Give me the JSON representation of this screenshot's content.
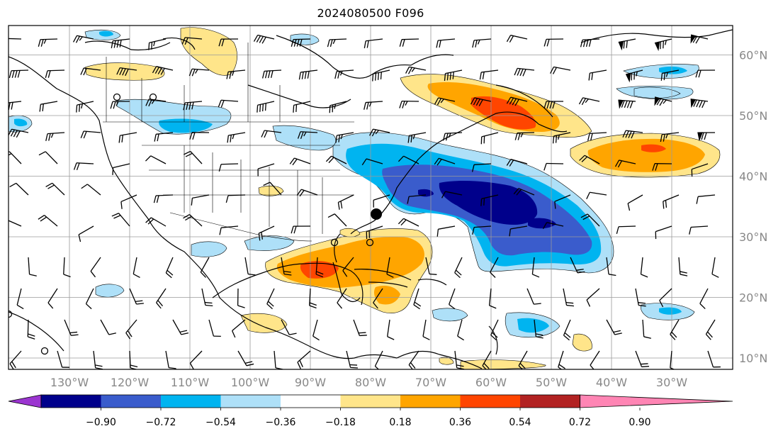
{
  "title": "2024080500 F096",
  "lon_labels": [
    "130°W",
    "120°W",
    "110°W",
    "100°W",
    "90°W",
    "80°W",
    "70°W",
    "60°W",
    "50°W",
    "40°W",
    "30°W"
  ],
  "lat_labels": [
    "60°N",
    "50°N",
    "40°N",
    "30°N",
    "20°N",
    "10°N"
  ],
  "colorbar": {
    "ticks": [
      "−0.90",
      "−0.72",
      "−0.54",
      "−0.36",
      "−0.18",
      "0.18",
      "0.36",
      "0.54",
      "0.72",
      "0.90"
    ],
    "colors": [
      "#9b35d0",
      "#00008b",
      "#3a5ccc",
      "#00b4f0",
      "#aee0f8",
      "#ffffff",
      "#ffe58a",
      "#ffa500",
      "#ff4500",
      "#b22222",
      "#ff85b4"
    ]
  },
  "map": {
    "extent": {
      "lon_min": -140,
      "lon_max": -20,
      "lat_min": 8,
      "lat_max": 65
    },
    "markers": [
      {
        "type": "filled-dot",
        "lon": -79,
        "lat": 33.8
      },
      {
        "type": "open-circle",
        "lon": -133,
        "lat": 53
      },
      {
        "type": "open-circle",
        "lon": -128.5,
        "lat": 53
      },
      {
        "type": "open-circle",
        "lon": -86.5,
        "lat": 29.5
      },
      {
        "type": "open-circle",
        "lon": -80,
        "lat": 29.5
      },
      {
        "type": "open-circle",
        "lon": -134.5,
        "lat": 11
      },
      {
        "type": "open-circle",
        "lon": -140,
        "lat": 17
      }
    ]
  }
}
